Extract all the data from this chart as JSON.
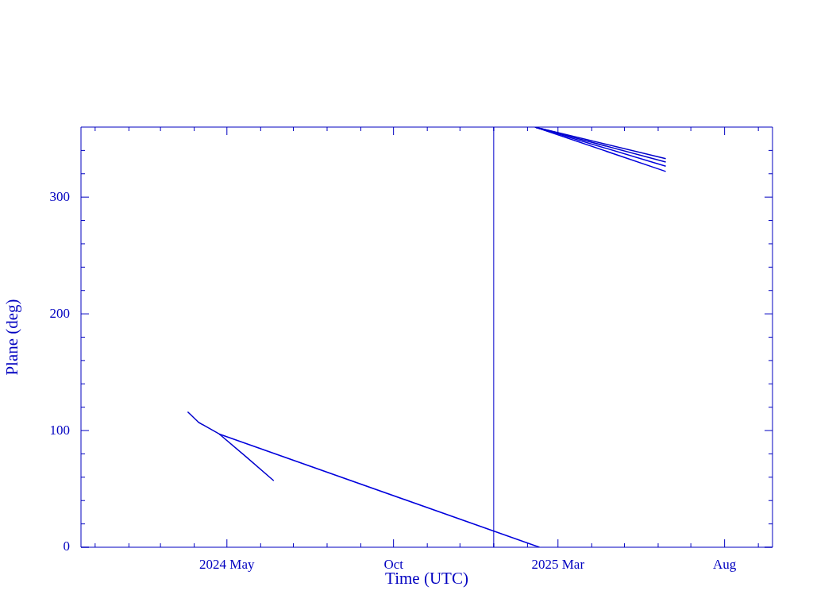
{
  "chart_data": {
    "type": "line",
    "xlabel": "Time (UTC)",
    "ylabel": "Plane (deg)",
    "xlim": [
      "2023-12-19",
      "2025-09-14"
    ],
    "xticks": [
      {
        "value": "2024-01-01",
        "label": null
      },
      {
        "value": "2024-02-01",
        "label": null
      },
      {
        "value": "2024-03-01",
        "label": null
      },
      {
        "value": "2024-04-01",
        "label": null
      },
      {
        "value": "2024-05-01",
        "label": "2024 May"
      },
      {
        "value": "2024-06-01",
        "label": null
      },
      {
        "value": "2024-07-01",
        "label": null
      },
      {
        "value": "2024-08-01",
        "label": null
      },
      {
        "value": "2024-09-01",
        "label": null
      },
      {
        "value": "2024-10-01",
        "label": "Oct"
      },
      {
        "value": "2024-11-01",
        "label": null
      },
      {
        "value": "2024-12-01",
        "label": null
      },
      {
        "value": "2025-01-01",
        "label": null
      },
      {
        "value": "2025-02-01",
        "label": null
      },
      {
        "value": "2025-03-01",
        "label": "2025 Mar"
      },
      {
        "value": "2025-04-01",
        "label": null
      },
      {
        "value": "2025-05-01",
        "label": null
      },
      {
        "value": "2025-06-01",
        "label": null
      },
      {
        "value": "2025-07-01",
        "label": null
      },
      {
        "value": "2025-08-01",
        "label": "Aug"
      },
      {
        "value": "2025-09-01",
        "label": null
      }
    ],
    "ylim": [
      0,
      360
    ],
    "yticks": [
      0,
      {
        "value": 20,
        "label": null
      },
      {
        "value": 40,
        "label": null
      },
      {
        "value": 60,
        "label": null
      },
      {
        "value": 80,
        "label": null
      },
      100,
      {
        "value": 120,
        "label": null
      },
      {
        "value": 140,
        "label": null
      },
      {
        "value": 160,
        "label": null
      },
      {
        "value": 180,
        "label": null
      },
      200,
      {
        "value": 220,
        "label": null
      },
      {
        "value": 240,
        "label": null
      },
      {
        "value": 260,
        "label": null
      },
      {
        "value": 280,
        "label": null
      },
      300,
      {
        "value": 320,
        "label": null
      },
      {
        "value": 340,
        "label": null
      }
    ],
    "grid": false,
    "legend": false,
    "marker": "none",
    "line_style": "solid",
    "ref_lines": [
      {
        "axis": "x",
        "value": "2025-01-01",
        "color": "#0000cc"
      }
    ],
    "series": [
      {
        "color": "#0000cc",
        "x": [
          "2024-03-26",
          "2024-04-05",
          "2024-04-24",
          "2024-05-18",
          "2024-06-13"
        ],
        "values": [
          116,
          107,
          97,
          78,
          57
        ]
      },
      {
        "color": "#0000dd",
        "x": [
          "2024-04-24",
          "2025-02-12"
        ],
        "values": [
          97,
          0
        ]
      },
      {
        "color": "#0000cc",
        "x": [
          "2025-02-08",
          "2025-06-08"
        ],
        "values": [
          360,
          333
        ]
      },
      {
        "color": "#0000cc",
        "x": [
          "2025-02-08",
          "2025-06-08"
        ],
        "values": [
          360,
          330
        ]
      },
      {
        "color": "#0000dd",
        "x": [
          "2025-02-08",
          "2025-06-08"
        ],
        "values": [
          360,
          326.5
        ]
      },
      {
        "color": "#0000dd",
        "x": [
          "2025-02-08",
          "2025-06-08"
        ],
        "values": [
          360,
          322
        ]
      }
    ]
  }
}
